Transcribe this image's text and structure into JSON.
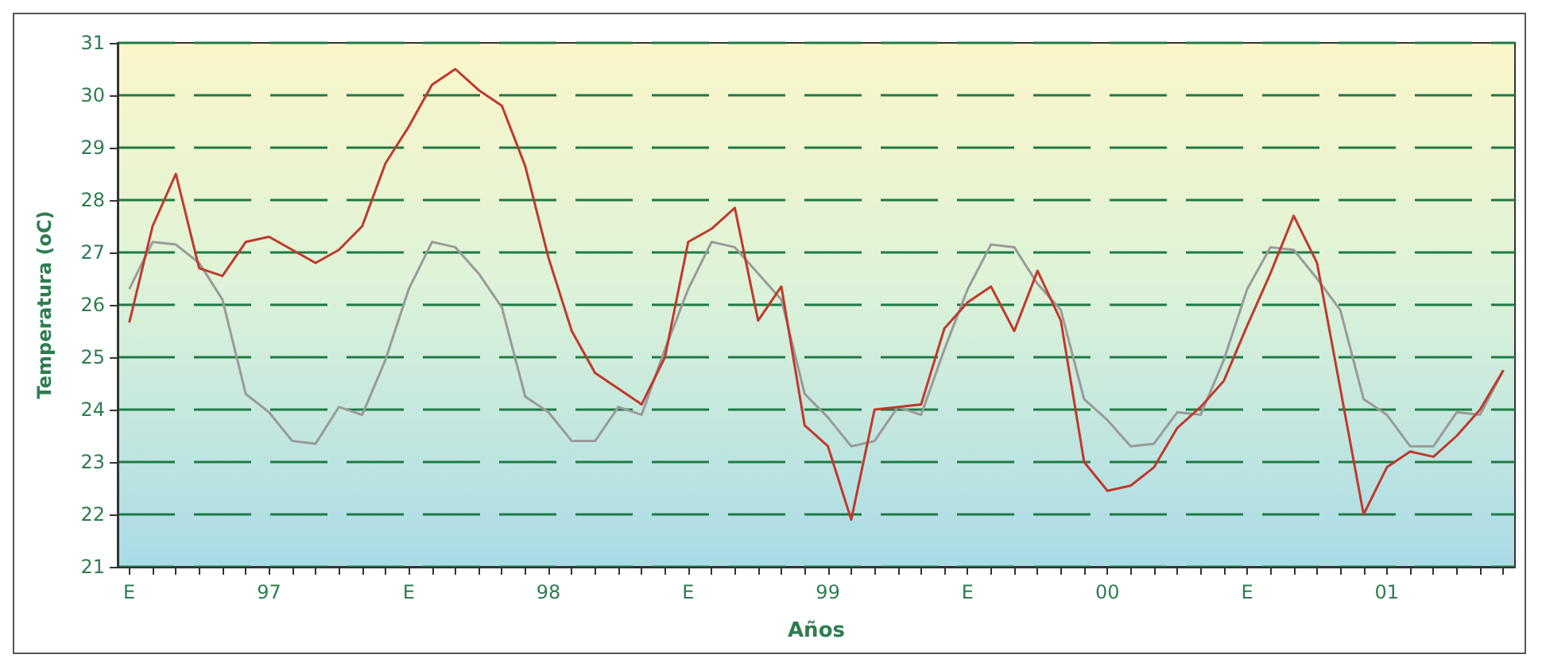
{
  "chart_data": {
    "type": "line",
    "xlabel": "Años",
    "ylabel": "Temperatura (oC)",
    "categories": [
      "E",
      null,
      null,
      null,
      null,
      null,
      "97",
      null,
      null,
      null,
      null,
      null,
      "E",
      null,
      null,
      null,
      null,
      null,
      "98",
      null,
      null,
      null,
      null,
      null,
      "E",
      null,
      null,
      null,
      null,
      null,
      "99",
      null,
      null,
      null,
      null,
      null,
      "E",
      null,
      null,
      null,
      null,
      null,
      "00",
      null,
      null,
      null,
      null,
      null,
      "E",
      null,
      null,
      null,
      null,
      null,
      "01",
      null,
      null,
      null,
      null,
      null
    ],
    "ylim": [
      21,
      31
    ],
    "yticks": [
      21,
      22,
      23,
      24,
      25,
      26,
      27,
      28,
      29,
      30,
      31
    ],
    "grid": "y",
    "marker": "none",
    "series": [
      {
        "color": "#9a9a9a",
        "values": [
          26.3,
          27.2,
          27.15,
          26.8,
          26.1,
          24.3,
          23.95,
          23.4,
          23.35,
          24.05,
          23.9,
          24.95,
          26.3,
          27.2,
          27.1,
          26.6,
          25.95,
          24.25,
          23.95,
          23.4,
          23.4,
          24.05,
          23.9,
          25.15,
          26.3,
          27.2,
          27.1,
          26.6,
          26.1,
          24.3,
          23.85,
          23.3,
          23.4,
          24.05,
          23.9,
          25.15,
          26.3,
          27.15,
          27.1,
          26.4,
          25.9,
          24.2,
          23.8,
          23.3,
          23.35,
          23.95,
          23.9,
          24.95,
          26.3,
          27.1,
          27.05,
          26.5,
          25.9,
          24.2,
          23.9,
          23.3,
          23.3,
          23.95,
          23.9,
          24.75
        ]
      },
      {
        "color": "#c0392b",
        "values": [
          25.66,
          27.5,
          28.5,
          26.7,
          26.55,
          27.2,
          27.3,
          27.05,
          26.8,
          27.05,
          27.5,
          28.7,
          29.4,
          30.2,
          30.5,
          30.1,
          29.8,
          28.65,
          26.9,
          25.5,
          24.7,
          24.4,
          24.1,
          25.0,
          27.2,
          27.45,
          27.85,
          25.7,
          26.35,
          23.7,
          23.3,
          21.9,
          24.0,
          24.05,
          24.1,
          25.55,
          26.05,
          26.35,
          25.5,
          26.65,
          25.7,
          23.0,
          22.45,
          22.55,
          22.9,
          23.65,
          24.05,
          24.55,
          25.6,
          26.6,
          27.7,
          26.8,
          24.4,
          22.0,
          22.9,
          23.2,
          23.1,
          23.5,
          24.0,
          24.75
        ]
      }
    ]
  }
}
